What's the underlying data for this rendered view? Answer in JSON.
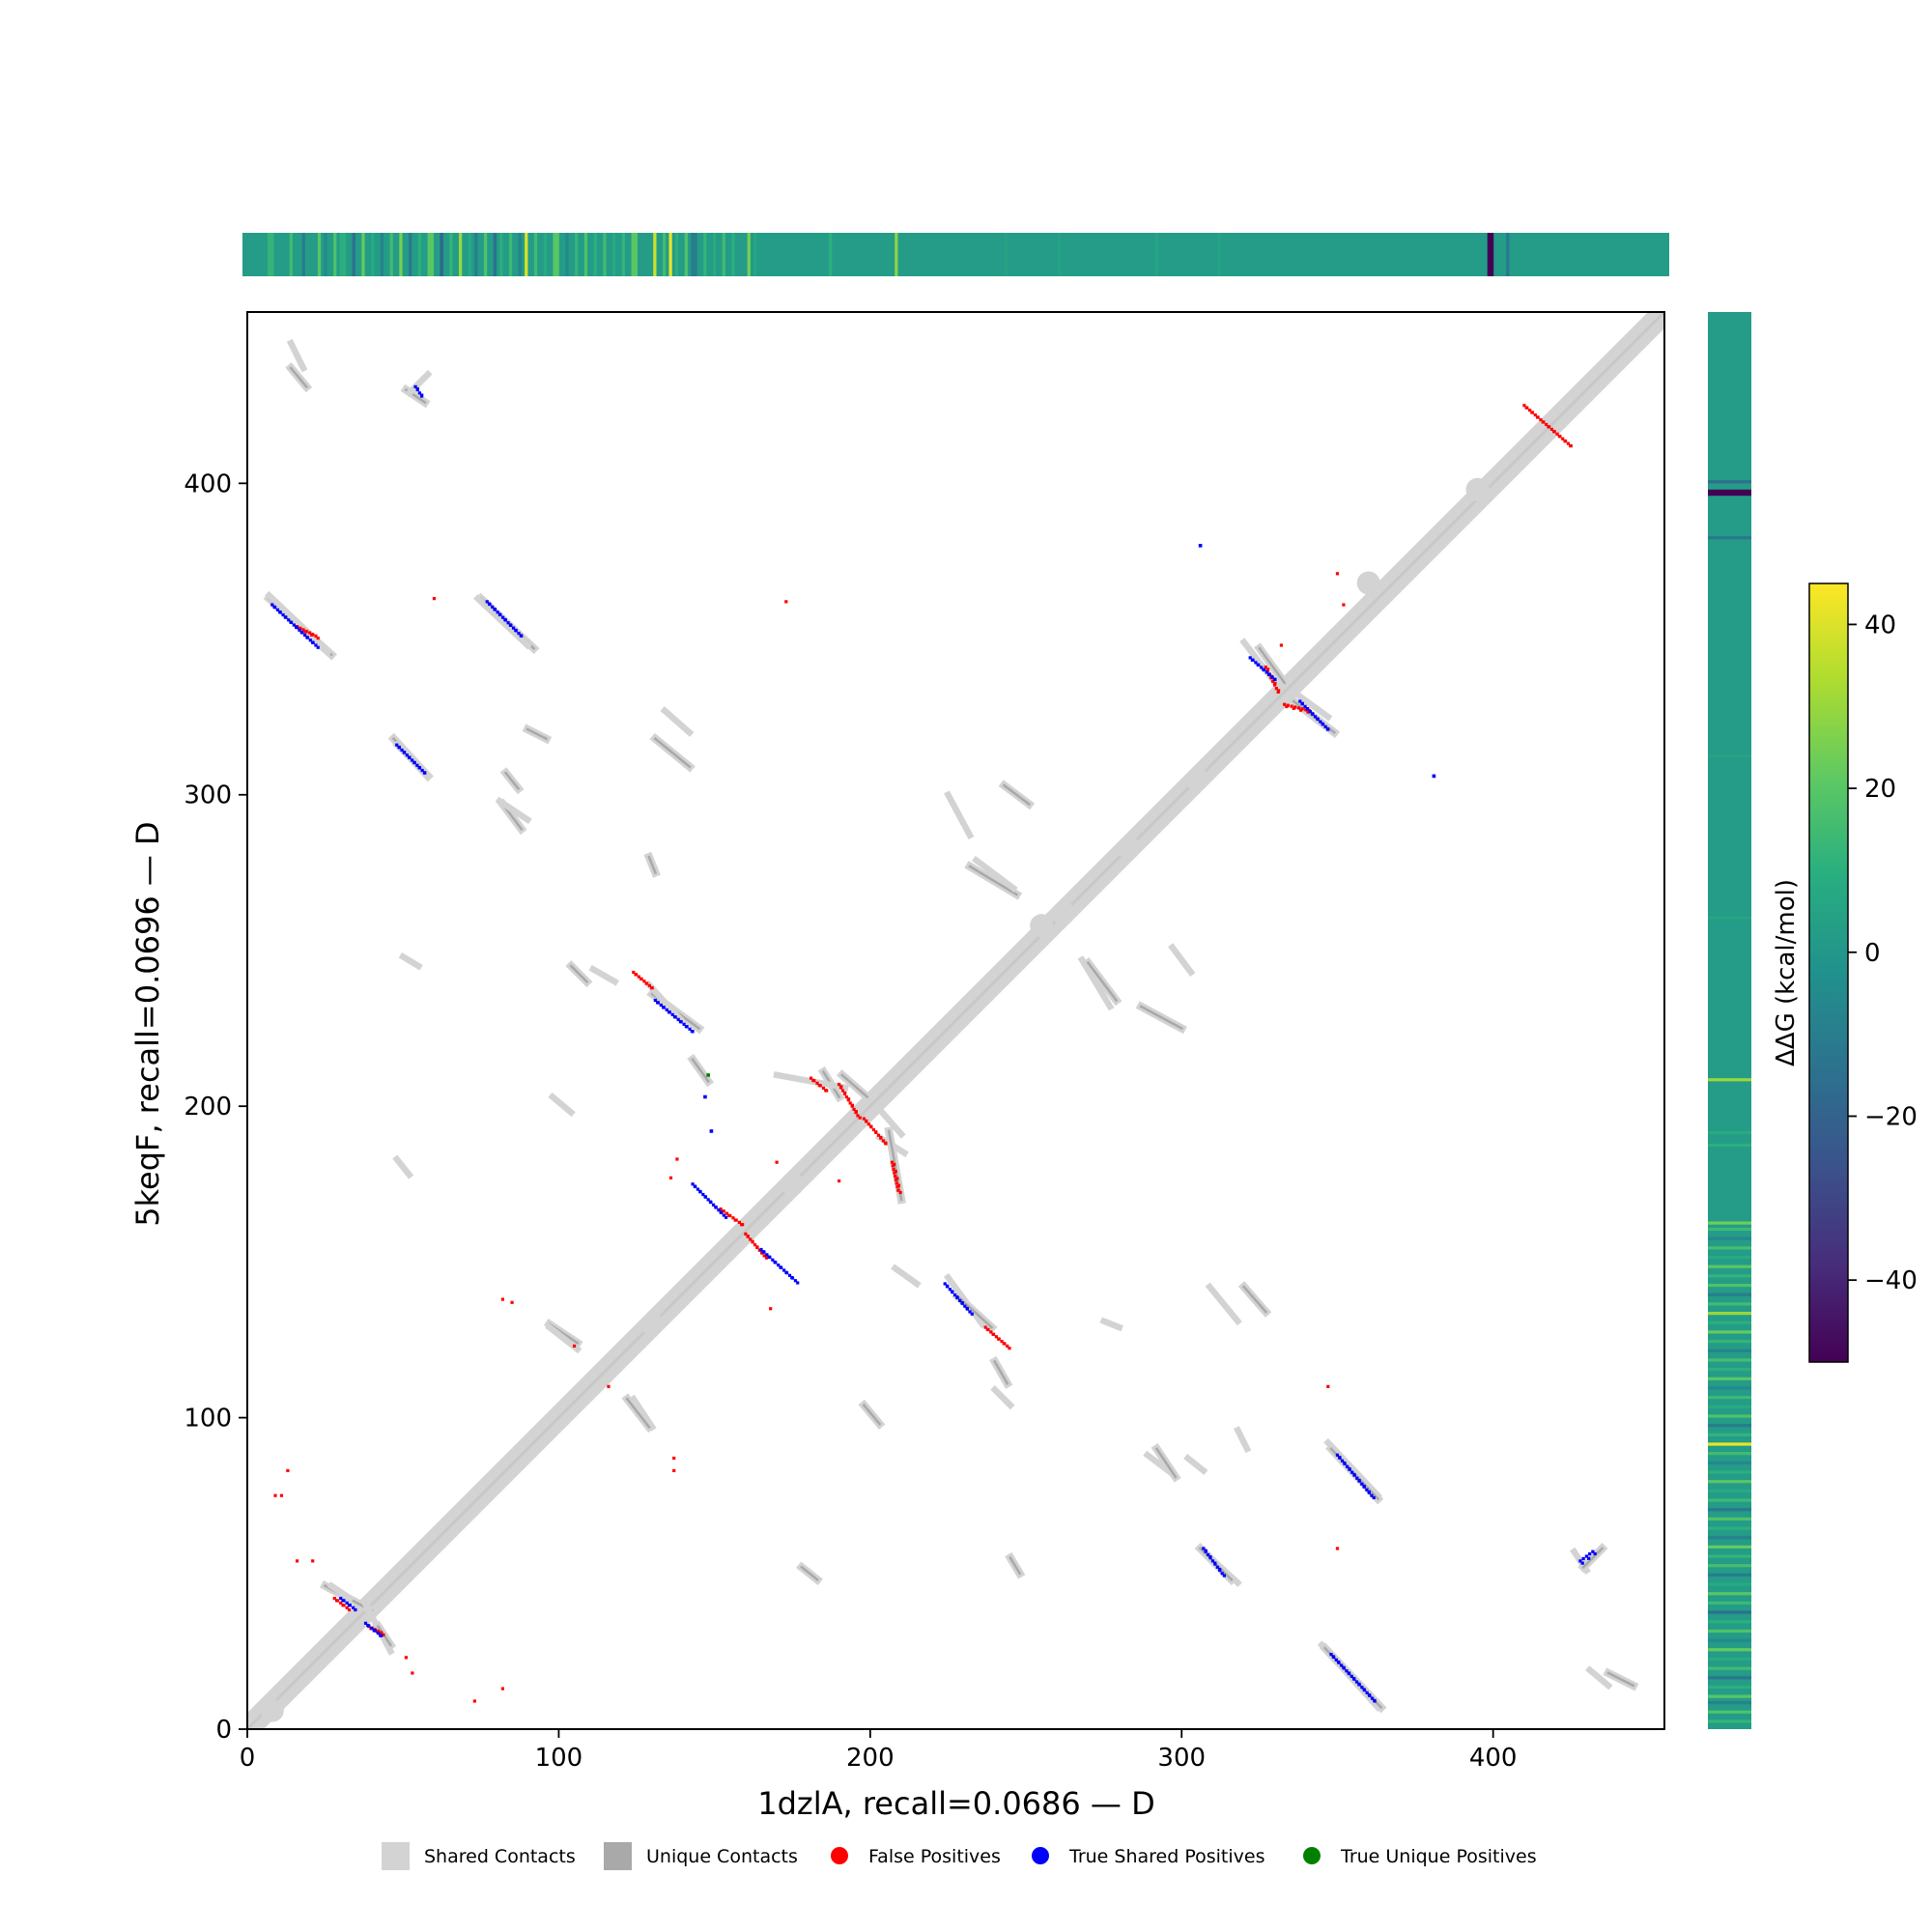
{
  "chart_data": {
    "type": "heatmap",
    "subtype": "protein contact map",
    "xlabel": "1dzlA, recall=0.0686 — D",
    "ylabel": "5keqF, recall=0.0696 — D",
    "xlim": [
      0,
      455
    ],
    "ylim": [
      0,
      455
    ],
    "xticks": [
      "0",
      "100",
      "200",
      "300",
      "400"
    ],
    "yticks": [
      "0",
      "100",
      "200",
      "300",
      "400"
    ],
    "xtick_values": [
      0,
      100,
      200,
      300,
      400
    ],
    "ytick_values": [
      0,
      100,
      200,
      300,
      400
    ],
    "grid": false,
    "legend_position": "bottom-center",
    "legend": [
      {
        "label": "Shared Contacts",
        "marker": "square",
        "color": "#d3d3d3"
      },
      {
        "label": "Unique Contacts",
        "marker": "square",
        "color": "#a9a9a9"
      },
      {
        "label": "False Positives",
        "marker": "circle",
        "color": "#ff0000"
      },
      {
        "label": "True Shared Positives",
        "marker": "circle",
        "color": "#0000ff"
      },
      {
        "label": "True Unique Positives",
        "marker": "circle",
        "color": "#008000"
      }
    ],
    "colorbar": {
      "label": "ΔΔG (kcal/mol)",
      "range": [
        -50,
        45
      ],
      "ticks": [
        "40",
        "20",
        "0",
        "−20",
        "−40"
      ],
      "tick_values": [
        40,
        20,
        0,
        -20,
        -40
      ],
      "colormap": "viridis"
    },
    "shared_segments": [
      {
        "x1": 7,
        "y1": 363,
        "x2": 27,
        "y2": 345
      },
      {
        "x1": 14,
        "y1": 437,
        "x2": 19,
        "y2": 431
      },
      {
        "x1": 51,
        "y1": 430,
        "x2": 57,
        "y2": 426
      },
      {
        "x1": 75,
        "y1": 363,
        "x2": 92,
        "y2": 347
      },
      {
        "x1": 47,
        "y1": 318,
        "x2": 58,
        "y2": 306
      },
      {
        "x1": 83,
        "y1": 307,
        "x2": 87,
        "y2": 302
      },
      {
        "x1": 82,
        "y1": 297,
        "x2": 88,
        "y2": 289
      },
      {
        "x1": 90,
        "y1": 321,
        "x2": 96,
        "y2": 318
      },
      {
        "x1": 131,
        "y1": 318,
        "x2": 142,
        "y2": 309
      },
      {
        "x1": 129,
        "y1": 280,
        "x2": 131,
        "y2": 275
      },
      {
        "x1": 104,
        "y1": 245,
        "x2": 109,
        "y2": 240
      },
      {
        "x1": 130,
        "y1": 236,
        "x2": 145,
        "y2": 225
      },
      {
        "x1": 143,
        "y1": 215,
        "x2": 148,
        "y2": 208
      },
      {
        "x1": 97,
        "y1": 130,
        "x2": 106,
        "y2": 124
      },
      {
        "x1": 122,
        "y1": 106,
        "x2": 129,
        "y2": 97
      },
      {
        "x1": 191,
        "y1": 210,
        "x2": 199,
        "y2": 203
      },
      {
        "x1": 185,
        "y1": 211,
        "x2": 190,
        "y2": 203
      },
      {
        "x1": 206,
        "y1": 192,
        "x2": 210,
        "y2": 170
      },
      {
        "x1": 228,
        "y1": 139,
        "x2": 239,
        "y2": 129
      },
      {
        "x1": 232,
        "y1": 277,
        "x2": 247,
        "y2": 268
      },
      {
        "x1": 243,
        "y1": 303,
        "x2": 251,
        "y2": 297
      },
      {
        "x1": 270,
        "y1": 246,
        "x2": 279,
        "y2": 234
      },
      {
        "x1": 287,
        "y1": 232,
        "x2": 300,
        "y2": 225
      },
      {
        "x1": 325,
        "y1": 347,
        "x2": 333,
        "y2": 336
      },
      {
        "x1": 336,
        "y1": 330,
        "x2": 349,
        "y2": 320
      },
      {
        "x1": 306,
        "y1": 58,
        "x2": 316,
        "y2": 48
      },
      {
        "x1": 348,
        "y1": 90,
        "x2": 363,
        "y2": 74
      },
      {
        "x1": 346,
        "y1": 26,
        "x2": 364,
        "y2": 7
      },
      {
        "x1": 429,
        "y1": 52,
        "x2": 435,
        "y2": 58
      },
      {
        "x1": 320,
        "y1": 142,
        "x2": 327,
        "y2": 134
      },
      {
        "x1": 292,
        "y1": 90,
        "x2": 298,
        "y2": 81
      },
      {
        "x1": 178,
        "y1": 52,
        "x2": 183,
        "y2": 48
      },
      {
        "x1": 198,
        "y1": 104,
        "x2": 203,
        "y2": 98
      },
      {
        "x1": 240,
        "y1": 118,
        "x2": 244,
        "y2": 111
      },
      {
        "x1": 245,
        "y1": 55,
        "x2": 248,
        "y2": 50
      },
      {
        "x1": 25,
        "y1": 46,
        "x2": 40,
        "y2": 38
      },
      {
        "x1": 42,
        "y1": 33,
        "x2": 46,
        "y2": 27
      },
      {
        "x1": 437,
        "y1": 18,
        "x2": 445,
        "y2": 14
      }
    ],
    "true_shared_segments": [
      {
        "x1": 8,
        "y1": 361,
        "x2": 22,
        "y2": 348
      },
      {
        "x1": 77,
        "y1": 362,
        "x2": 88,
        "y2": 351
      },
      {
        "x1": 48,
        "y1": 316,
        "x2": 57,
        "y2": 307
      },
      {
        "x1": 131,
        "y1": 234,
        "x2": 143,
        "y2": 224
      },
      {
        "x1": 143,
        "y1": 175,
        "x2": 153,
        "y2": 165
      },
      {
        "x1": 165,
        "y1": 154,
        "x2": 176,
        "y2": 144
      },
      {
        "x1": 224,
        "y1": 143,
        "x2": 232,
        "y2": 134
      },
      {
        "x1": 322,
        "y1": 344,
        "x2": 330,
        "y2": 337
      },
      {
        "x1": 338,
        "y1": 330,
        "x2": 347,
        "y2": 321
      },
      {
        "x1": 307,
        "y1": 58,
        "x2": 313,
        "y2": 50
      },
      {
        "x1": 350,
        "y1": 88,
        "x2": 361,
        "y2": 75
      },
      {
        "x1": 348,
        "y1": 24,
        "x2": 362,
        "y2": 9
      },
      {
        "x1": 30,
        "y1": 42,
        "x2": 34,
        "y2": 39
      },
      {
        "x1": 38,
        "y1": 34,
        "x2": 43,
        "y2": 30
      },
      {
        "x1": 428,
        "y1": 54,
        "x2": 432,
        "y2": 57
      },
      {
        "x1": 54,
        "y1": 431,
        "x2": 56,
        "y2": 428
      }
    ],
    "false_positive_segments": [
      {
        "x1": 124,
        "y1": 243,
        "x2": 130,
        "y2": 238
      },
      {
        "x1": 152,
        "y1": 167,
        "x2": 159,
        "y2": 162
      },
      {
        "x1": 160,
        "y1": 159,
        "x2": 166,
        "y2": 152
      },
      {
        "x1": 181,
        "y1": 209,
        "x2": 186,
        "y2": 205
      },
      {
        "x1": 190,
        "y1": 207,
        "x2": 196,
        "y2": 197
      },
      {
        "x1": 198,
        "y1": 196,
        "x2": 205,
        "y2": 188
      },
      {
        "x1": 207,
        "y1": 182,
        "x2": 209,
        "y2": 173
      },
      {
        "x1": 237,
        "y1": 129,
        "x2": 244,
        "y2": 123
      },
      {
        "x1": 327,
        "y1": 341,
        "x2": 331,
        "y2": 333
      },
      {
        "x1": 333,
        "y1": 329,
        "x2": 341,
        "y2": 327
      },
      {
        "x1": 28,
        "y1": 42,
        "x2": 32,
        "y2": 39
      },
      {
        "x1": 39,
        "y1": 33,
        "x2": 43,
        "y2": 31
      },
      {
        "x1": 16,
        "y1": 354,
        "x2": 22,
        "y2": 351
      },
      {
        "x1": 410,
        "y1": 425,
        "x2": 425,
        "y2": 412
      }
    ],
    "false_positive_points": [
      [
        137,
        87
      ],
      [
        137,
        83
      ],
      [
        21,
        54
      ],
      [
        16,
        54
      ],
      [
        9,
        75
      ],
      [
        11,
        75
      ],
      [
        13,
        83
      ],
      [
        82,
        138
      ],
      [
        85,
        137
      ],
      [
        73,
        9
      ],
      [
        82,
        13
      ],
      [
        53,
        18
      ],
      [
        51,
        23
      ],
      [
        105,
        123
      ],
      [
        116,
        110
      ],
      [
        168,
        135
      ],
      [
        170,
        182
      ],
      [
        190,
        176
      ],
      [
        138,
        183
      ],
      [
        352,
        361
      ],
      [
        350,
        371
      ],
      [
        350,
        58
      ],
      [
        347,
        110
      ],
      [
        381,
        306
      ],
      [
        332,
        348
      ],
      [
        136,
        177
      ],
      [
        60,
        363
      ],
      [
        173,
        362
      ]
    ],
    "true_shared_points": [
      [
        306,
        380
      ],
      [
        149,
        192
      ],
      [
        147,
        203
      ],
      [
        381,
        306
      ]
    ],
    "true_unique_points": [
      [
        148,
        210
      ]
    ],
    "top_ddg_bands": [
      {
        "from": 0,
        "to": 455,
        "value": 2
      },
      {
        "from": 8,
        "to": 10,
        "value": 12
      },
      {
        "from": 15,
        "to": 16,
        "value": 15
      },
      {
        "from": 19,
        "to": 20,
        "value": -10
      },
      {
        "from": 24,
        "to": 25,
        "value": 20
      },
      {
        "from": 26,
        "to": 27,
        "value": -5
      },
      {
        "from": 29,
        "to": 30,
        "value": 18
      },
      {
        "from": 31,
        "to": 33,
        "value": 10
      },
      {
        "from": 35,
        "to": 36,
        "value": -15
      },
      {
        "from": 38,
        "to": 39,
        "value": 22
      },
      {
        "from": 41,
        "to": 42,
        "value": 8
      },
      {
        "from": 44,
        "to": 45,
        "value": -8
      },
      {
        "from": 47,
        "to": 48,
        "value": 15
      },
      {
        "from": 50,
        "to": 51,
        "value": 25
      },
      {
        "from": 53,
        "to": 54,
        "value": -12
      },
      {
        "from": 56,
        "to": 57,
        "value": 10
      },
      {
        "from": 59,
        "to": 61,
        "value": 20
      },
      {
        "from": 63,
        "to": 64,
        "value": -20
      },
      {
        "from": 66,
        "to": 67,
        "value": 12
      },
      {
        "from": 69,
        "to": 70,
        "value": 30
      },
      {
        "from": 72,
        "to": 73,
        "value": 8
      },
      {
        "from": 74,
        "to": 75,
        "value": -10
      },
      {
        "from": 77,
        "to": 78,
        "value": 18
      },
      {
        "from": 80,
        "to": 81,
        "value": -15
      },
      {
        "from": 82,
        "to": 83,
        "value": 10
      },
      {
        "from": 85,
        "to": 86,
        "value": 14
      },
      {
        "from": 88,
        "to": 89,
        "value": -8
      },
      {
        "from": 90,
        "to": 91,
        "value": 40
      },
      {
        "from": 93,
        "to": 94,
        "value": 15
      },
      {
        "from": 96,
        "to": 97,
        "value": 8
      },
      {
        "from": 99,
        "to": 101,
        "value": 20
      },
      {
        "from": 103,
        "to": 104,
        "value": -5
      },
      {
        "from": 106,
        "to": 107,
        "value": 12
      },
      {
        "from": 109,
        "to": 110,
        "value": 18
      },
      {
        "from": 112,
        "to": 113,
        "value": 10
      },
      {
        "from": 115,
        "to": 116,
        "value": 15
      },
      {
        "from": 118,
        "to": 119,
        "value": 8
      },
      {
        "from": 121,
        "to": 122,
        "value": 12
      },
      {
        "from": 124,
        "to": 126,
        "value": 20
      },
      {
        "from": 131,
        "to": 132,
        "value": 38
      },
      {
        "from": 134,
        "to": 135,
        "value": 15
      },
      {
        "from": 136,
        "to": 137,
        "value": 42
      },
      {
        "from": 138,
        "to": 139,
        "value": 10
      },
      {
        "from": 141,
        "to": 142,
        "value": 18
      },
      {
        "from": 143,
        "to": 145,
        "value": -10
      },
      {
        "from": 147,
        "to": 148,
        "value": 12
      },
      {
        "from": 150,
        "to": 151,
        "value": 8
      },
      {
        "from": 153,
        "to": 154,
        "value": 15
      },
      {
        "from": 156,
        "to": 157,
        "value": 10
      },
      {
        "from": 161,
        "to": 162,
        "value": 25
      },
      {
        "from": 163,
        "to": 164,
        "value": 6
      },
      {
        "from": 187,
        "to": 188,
        "value": 10
      },
      {
        "from": 208,
        "to": 209,
        "value": 28
      },
      {
        "from": 243,
        "to": 244,
        "value": 5
      },
      {
        "from": 260,
        "to": 261,
        "value": 5
      },
      {
        "from": 291,
        "to": 292,
        "value": 6
      },
      {
        "from": 311,
        "to": 312,
        "value": 5
      },
      {
        "from": 397,
        "to": 399,
        "value": -50
      },
      {
        "from": 403,
        "to": 404,
        "value": -12
      }
    ],
    "right_ddg_bands": [
      {
        "from": 0,
        "to": 455,
        "value": 2
      },
      {
        "from": 2,
        "to": 3,
        "value": 12
      },
      {
        "from": 5,
        "to": 6,
        "value": 18
      },
      {
        "from": 8,
        "to": 9,
        "value": -8
      },
      {
        "from": 10,
        "to": 11,
        "value": 20
      },
      {
        "from": 13,
        "to": 14,
        "value": 10
      },
      {
        "from": 16,
        "to": 17,
        "value": -12
      },
      {
        "from": 19,
        "to": 20,
        "value": 15
      },
      {
        "from": 22,
        "to": 23,
        "value": 8
      },
      {
        "from": 25,
        "to": 26,
        "value": 22
      },
      {
        "from": 28,
        "to": 29,
        "value": -5
      },
      {
        "from": 31,
        "to": 32,
        "value": 18
      },
      {
        "from": 34,
        "to": 35,
        "value": 10
      },
      {
        "from": 37,
        "to": 38,
        "value": -15
      },
      {
        "from": 40,
        "to": 41,
        "value": 14
      },
      {
        "from": 43,
        "to": 44,
        "value": 20
      },
      {
        "from": 46,
        "to": 47,
        "value": 8
      },
      {
        "from": 49,
        "to": 50,
        "value": -10
      },
      {
        "from": 52,
        "to": 53,
        "value": 16
      },
      {
        "from": 55,
        "to": 56,
        "value": 12
      },
      {
        "from": 58,
        "to": 59,
        "value": 22
      },
      {
        "from": 61,
        "to": 62,
        "value": -8
      },
      {
        "from": 64,
        "to": 65,
        "value": 10
      },
      {
        "from": 67,
        "to": 68,
        "value": 18
      },
      {
        "from": 70,
        "to": 71,
        "value": -12
      },
      {
        "from": 73,
        "to": 74,
        "value": 14
      },
      {
        "from": 76,
        "to": 77,
        "value": 8
      },
      {
        "from": 79,
        "to": 80,
        "value": 20
      },
      {
        "from": 82,
        "to": 83,
        "value": 10
      },
      {
        "from": 85,
        "to": 86,
        "value": -6
      },
      {
        "from": 88,
        "to": 89,
        "value": 15
      },
      {
        "from": 91,
        "to": 92,
        "value": 42
      },
      {
        "from": 94,
        "to": 95,
        "value": 12
      },
      {
        "from": 97,
        "to": 98,
        "value": -10
      },
      {
        "from": 100,
        "to": 101,
        "value": 18
      },
      {
        "from": 103,
        "to": 104,
        "value": 8
      },
      {
        "from": 106,
        "to": 107,
        "value": 14
      },
      {
        "from": 109,
        "to": 110,
        "value": -5
      },
      {
        "from": 112,
        "to": 113,
        "value": 20
      },
      {
        "from": 115,
        "to": 116,
        "value": 10
      },
      {
        "from": 118,
        "to": 119,
        "value": 16
      },
      {
        "from": 121,
        "to": 122,
        "value": -8
      },
      {
        "from": 124,
        "to": 125,
        "value": 12
      },
      {
        "from": 127,
        "to": 128,
        "value": 22
      },
      {
        "from": 130,
        "to": 131,
        "value": 10
      },
      {
        "from": 133,
        "to": 134,
        "value": 30
      },
      {
        "from": 136,
        "to": 137,
        "value": 15
      },
      {
        "from": 139,
        "to": 140,
        "value": -10
      },
      {
        "from": 142,
        "to": 143,
        "value": 18
      },
      {
        "from": 145,
        "to": 146,
        "value": 12
      },
      {
        "from": 148,
        "to": 149,
        "value": 20
      },
      {
        "from": 151,
        "to": 152,
        "value": 8
      },
      {
        "from": 154,
        "to": 155,
        "value": 16
      },
      {
        "from": 157,
        "to": 158,
        "value": -6
      },
      {
        "from": 160,
        "to": 161,
        "value": 14
      },
      {
        "from": 162,
        "to": 163,
        "value": 24
      },
      {
        "from": 187,
        "to": 188,
        "value": 10
      },
      {
        "from": 191,
        "to": 192,
        "value": 8
      },
      {
        "from": 208,
        "to": 209,
        "value": 30
      },
      {
        "from": 260,
        "to": 261,
        "value": 6
      },
      {
        "from": 312,
        "to": 313,
        "value": 5
      },
      {
        "from": 382,
        "to": 383,
        "value": -12
      },
      {
        "from": 396,
        "to": 398,
        "value": -50
      },
      {
        "from": 400,
        "to": 401,
        "value": -15
      }
    ]
  },
  "colors": {
    "shared": "#d3d3d3",
    "unique": "#a9a9a9",
    "false_positive": "#ff0000",
    "true_shared": "#0000ff",
    "true_unique": "#008000"
  }
}
